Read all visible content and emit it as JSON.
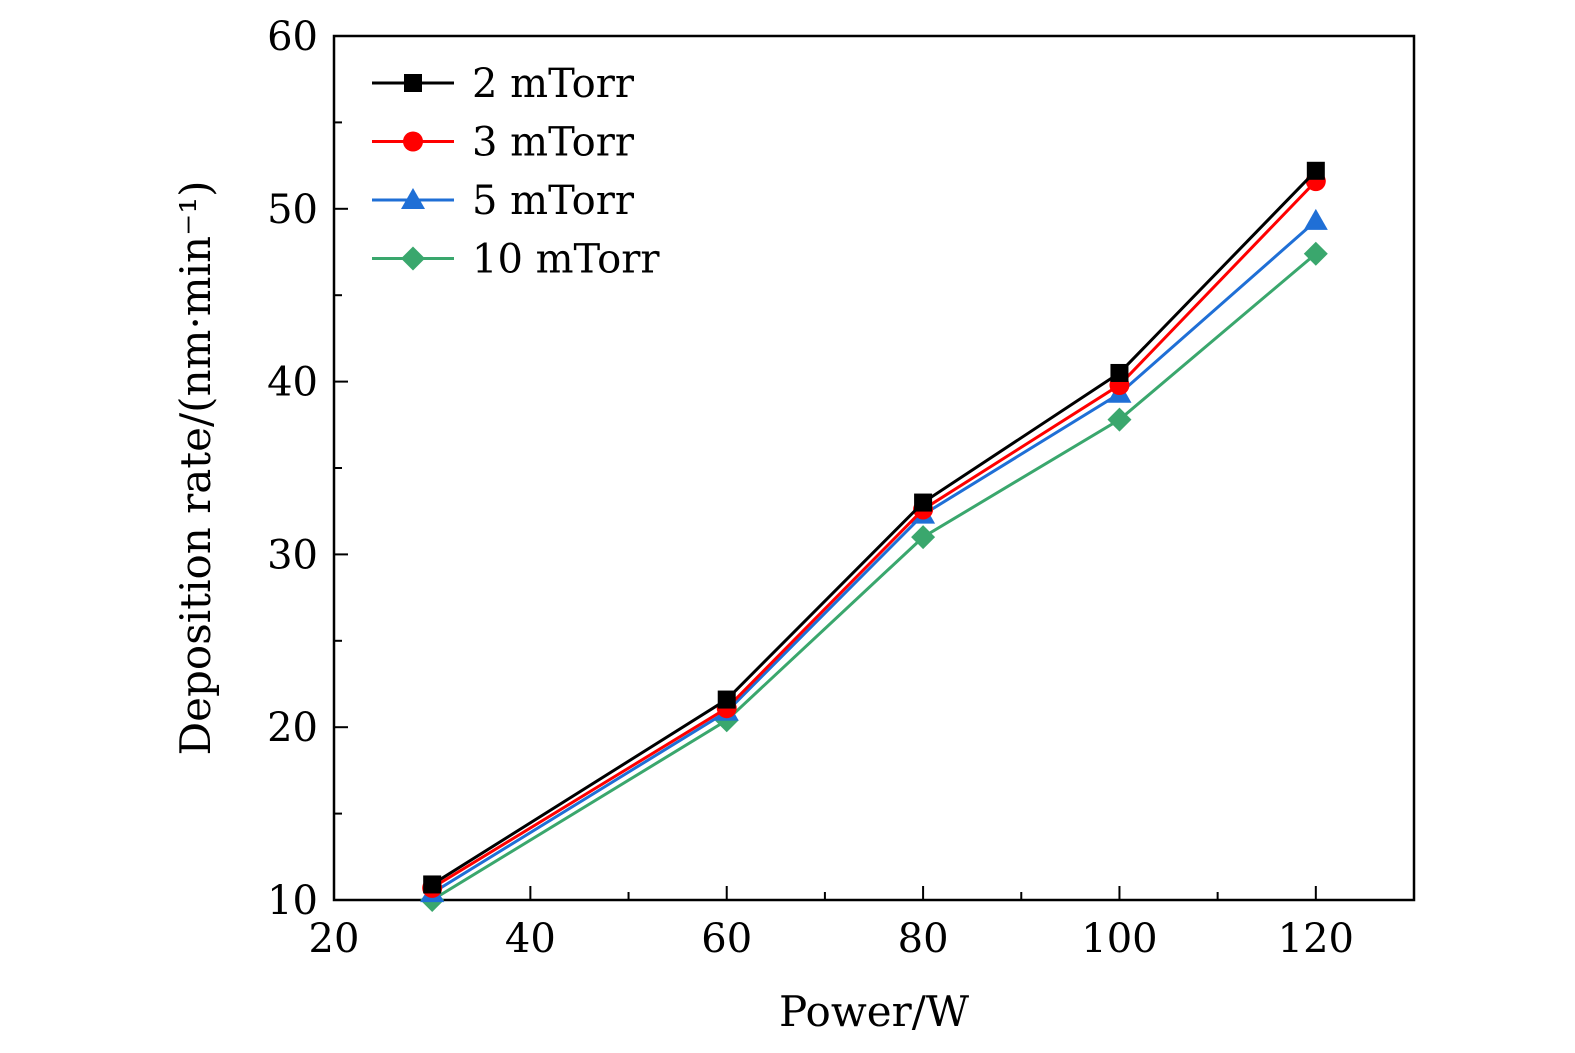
{
  "chart_data": {
    "type": "line",
    "xlabel": "Power/W",
    "ylabel": "Deposition rate/(nm·min⁻¹)",
    "xlim": [
      20,
      130
    ],
    "ylim": [
      10,
      60
    ],
    "x_major_ticks": [
      20,
      40,
      60,
      80,
      100,
      120
    ],
    "x_tick_labels": [
      "20",
      "40",
      "60",
      "80",
      "100",
      "120"
    ],
    "x_minor_ticks": [
      30,
      50,
      70,
      90,
      110,
      130
    ],
    "y_major_ticks": [
      10,
      20,
      30,
      40,
      50,
      60
    ],
    "y_tick_labels": [
      "10",
      "20",
      "30",
      "40",
      "50",
      "60"
    ],
    "y_minor_ticks": [
      15,
      25,
      35,
      45,
      55
    ],
    "grid": false,
    "legend_position": "top-left",
    "x": [
      30,
      60,
      80,
      100,
      120
    ],
    "series": [
      {
        "name": "2 mTorr",
        "color": "#000000",
        "marker": "square",
        "values": [
          10.9,
          21.6,
          33.0,
          40.5,
          52.2
        ]
      },
      {
        "name": "3 mTorr",
        "color": "#ff0000",
        "marker": "circle",
        "values": [
          10.7,
          21.1,
          32.6,
          39.8,
          51.6
        ]
      },
      {
        "name": "5 mTorr",
        "color": "#1f6fd6",
        "marker": "triangle",
        "values": [
          10.4,
          20.9,
          32.3,
          39.3,
          49.3
        ]
      },
      {
        "name": "10 mTorr",
        "color": "#3aa76d",
        "marker": "diamond",
        "values": [
          10.0,
          20.4,
          31.0,
          37.8,
          47.4
        ]
      }
    ]
  }
}
